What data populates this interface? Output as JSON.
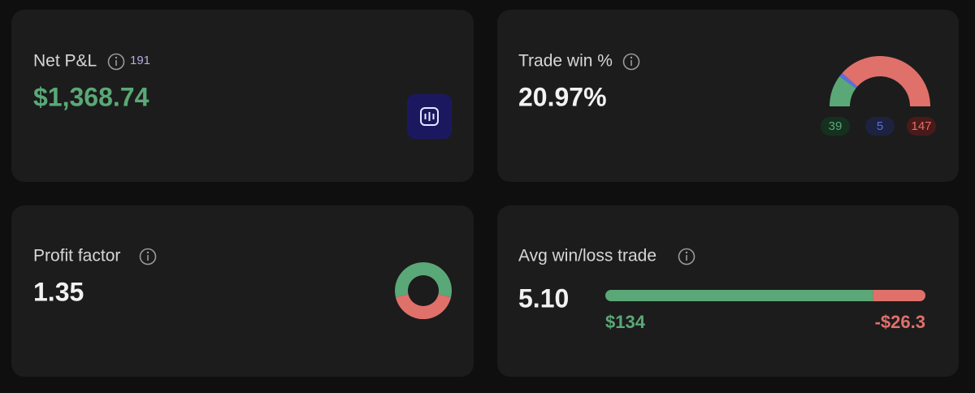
{
  "cards": [
    {
      "title": "Net P&L",
      "count": 191,
      "value": "$1,368.74"
    },
    {
      "title": "Trade win %",
      "value": "20.97%",
      "gauge": [
        {
          "value": 39,
          "color": "#5aa877"
        },
        {
          "value": 5,
          "color": "#5b6ee0"
        },
        {
          "value": 147,
          "color": "#e0706a"
        }
      ]
    },
    {
      "title": "Profit factor",
      "value": 1.35,
      "colors": [
        "#5aa877",
        "#e0706a"
      ]
    },
    {
      "title": "Avg win/loss trade",
      "value": "5.10",
      "avg_win": {
        "value": 134,
        "label": "$134"
      },
      "avg_loss": {
        "value": -26.3,
        "label": "-$26.3"
      }
    }
  ]
}
